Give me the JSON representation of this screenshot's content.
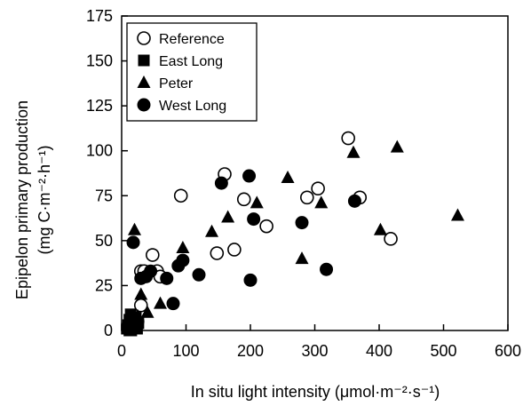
{
  "chart_data": {
    "type": "scatter",
    "title": "",
    "xlabel": "In situ light intensity (μmol·m⁻²·s⁻¹)",
    "ylabel_line1": "Epipelon primary production",
    "ylabel_line2": "(mg C·m⁻²·h⁻¹)",
    "xlim": [
      0,
      600
    ],
    "ylim": [
      0,
      175
    ],
    "x_ticks": [
      0,
      100,
      200,
      300,
      400,
      500,
      600
    ],
    "y_ticks": [
      0,
      25,
      50,
      75,
      100,
      125,
      150,
      175
    ],
    "grid": false,
    "legend_position": "top-left",
    "series": [
      {
        "name": "Reference",
        "marker": "open-circle",
        "color": "#000000",
        "points": [
          [
            30,
            14
          ],
          [
            30,
            33
          ],
          [
            35,
            33
          ],
          [
            48,
            42
          ],
          [
            55,
            33
          ],
          [
            60,
            30
          ],
          [
            92,
            75
          ],
          [
            148,
            43
          ],
          [
            160,
            87
          ],
          [
            175,
            45
          ],
          [
            190,
            73
          ],
          [
            225,
            58
          ],
          [
            288,
            74
          ],
          [
            305,
            79
          ],
          [
            352,
            107
          ],
          [
            370,
            74
          ],
          [
            418,
            51
          ]
        ]
      },
      {
        "name": "East Long",
        "marker": "filled-square",
        "color": "#000000",
        "points": [
          [
            8,
            1
          ],
          [
            10,
            3
          ],
          [
            12,
            6
          ],
          [
            14,
            9
          ],
          [
            15,
            0
          ],
          [
            18,
            4
          ],
          [
            20,
            2
          ],
          [
            22,
            7
          ],
          [
            24,
            1
          ],
          [
            26,
            4
          ],
          [
            12,
            0
          ],
          [
            16,
            2
          ]
        ]
      },
      {
        "name": "Peter",
        "marker": "filled-triangle",
        "color": "#000000",
        "points": [
          [
            20,
            56
          ],
          [
            25,
            8
          ],
          [
            30,
            20
          ],
          [
            40,
            10
          ],
          [
            60,
            15
          ],
          [
            95,
            46
          ],
          [
            140,
            55
          ],
          [
            165,
            63
          ],
          [
            210,
            71
          ],
          [
            258,
            85
          ],
          [
            280,
            40
          ],
          [
            310,
            71
          ],
          [
            360,
            99
          ],
          [
            402,
            56
          ],
          [
            428,
            102
          ],
          [
            522,
            64
          ]
        ]
      },
      {
        "name": "West Long",
        "marker": "filled-circle",
        "color": "#000000",
        "points": [
          [
            18,
            49
          ],
          [
            25,
            5
          ],
          [
            30,
            29
          ],
          [
            38,
            30
          ],
          [
            45,
            33
          ],
          [
            70,
            29
          ],
          [
            80,
            15
          ],
          [
            88,
            36
          ],
          [
            95,
            39
          ],
          [
            120,
            31
          ],
          [
            155,
            82
          ],
          [
            198,
            86
          ],
          [
            200,
            28
          ],
          [
            205,
            62
          ],
          [
            280,
            60
          ],
          [
            318,
            34
          ],
          [
            362,
            72
          ]
        ]
      }
    ]
  }
}
